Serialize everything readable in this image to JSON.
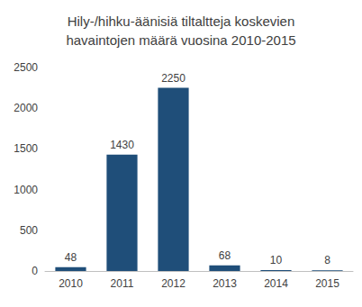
{
  "chart_data": {
    "type": "bar",
    "title": "Hily-/hihku-äänisiä tiltaltteja koskevien\nhavaintojen määrä vuosina 2010-2015",
    "categories": [
      "2010",
      "2011",
      "2012",
      "2013",
      "2014",
      "2015"
    ],
    "values": [
      48,
      1430,
      2250,
      68,
      10,
      8
    ],
    "color": "#1f4e79",
    "ylim": [
      0,
      2500
    ],
    "yticks": [
      0,
      500,
      1000,
      1500,
      2000,
      2500
    ],
    "grid": false,
    "data_labels": true
  }
}
